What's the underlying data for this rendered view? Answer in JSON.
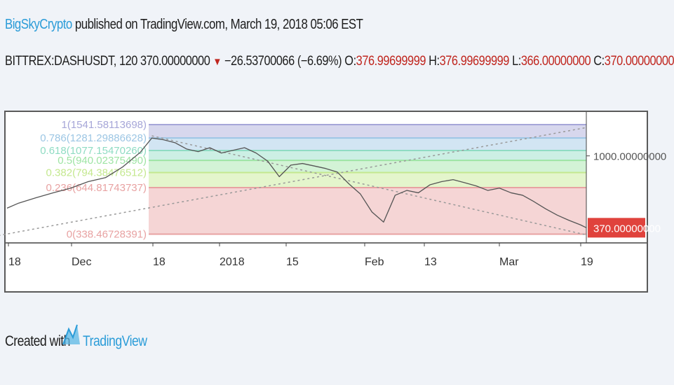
{
  "header": {
    "author": "BigSkyCrypto",
    "published": "published on TradingView.com, March 19, 2018 05:06 EST",
    "symbol": "BITTREX:DASHUSDT, 120",
    "last": "370.00000000",
    "change": "−26.53700066 (−6.69%)",
    "o_label": "O:",
    "o_value": "376.99699999",
    "h_label": "H:",
    "h_value": "376.99699999",
    "l_label": "L:",
    "l_value": "366.00000000",
    "c_label": "C:",
    "c_value": "370.00000000"
  },
  "footer": {
    "created_with": "Created with",
    "brand": "TradingView"
  },
  "colors": {
    "price_line": "#555555",
    "last_price_badge": "#e0423c",
    "author": "#2b9cd8",
    "down": "#c0261f"
  },
  "icons": {
    "down_arrow": "triangle-down-icon",
    "logo": "tradingview-logo-icon"
  },
  "chart_data": {
    "type": "line",
    "symbol": "BITTREX:DASHUSDT",
    "interval": "120",
    "yscale": "log",
    "ylim": [
      300,
      1800
    ],
    "y_tick_labels": [
      "1000.00000000"
    ],
    "last_price_label": "370.00000000",
    "x_tick_labels": [
      "18",
      "Dec",
      "18",
      "2018",
      "15",
      "Feb",
      "13",
      "Mar",
      "19"
    ],
    "fib_levels": [
      {
        "label": "1(1541.58113698)",
        "price": 1541.58
      },
      {
        "label": "0.786(1281.29886628)",
        "price": 1281.3
      },
      {
        "label": "0.618(1077.15470260)",
        "price": 1077.15
      },
      {
        "label": "0.5(940.02375490)",
        "price": 940.02
      },
      {
        "label": "0.382(794.38476512)",
        "price": 794.38
      },
      {
        "label": "0.236(644.81743737)",
        "price": 644.82
      },
      {
        "label": "0(338.46728391)",
        "price": 338.47
      }
    ],
    "fib_colors": [
      "#a6a6d8",
      "#9cc6e4",
      "#8fdcc3",
      "#9ee4a4",
      "#c4e88f",
      "#e8a2a2"
    ],
    "series": [
      {
        "t": [
          0,
          2,
          5,
          8,
          11,
          14,
          17,
          20,
          23,
          25,
          27,
          29,
          31,
          33,
          35,
          37,
          39,
          41,
          43,
          45,
          47,
          49,
          51,
          53,
          55,
          57,
          59,
          61,
          63,
          65,
          67,
          69,
          71,
          73,
          75,
          77,
          79,
          81,
          83,
          85,
          87,
          89,
          91,
          93,
          95,
          97,
          99,
          100
        ],
        "price": [
          485,
          520,
          560,
          600,
          640,
          700,
          740,
          860,
          1050,
          1280,
          1250,
          1200,
          1100,
          1060,
          1120,
          1040,
          1080,
          1120,
          1040,
          930,
          750,
          880,
          900,
          870,
          840,
          800,
          680,
          590,
          460,
          400,
          580,
          620,
          600,
          670,
          700,
          720,
          690,
          660,
          620,
          640,
          600,
          580,
          530,
          480,
          440,
          410,
          385,
          370
        ]
      },
      {
        "t": [
          -4,
          100
        ],
        "price": [
          320,
          1480
        ]
      },
      {
        "t": [
          25,
          100
        ],
        "price": [
          1320,
          335
        ]
      }
    ]
  }
}
